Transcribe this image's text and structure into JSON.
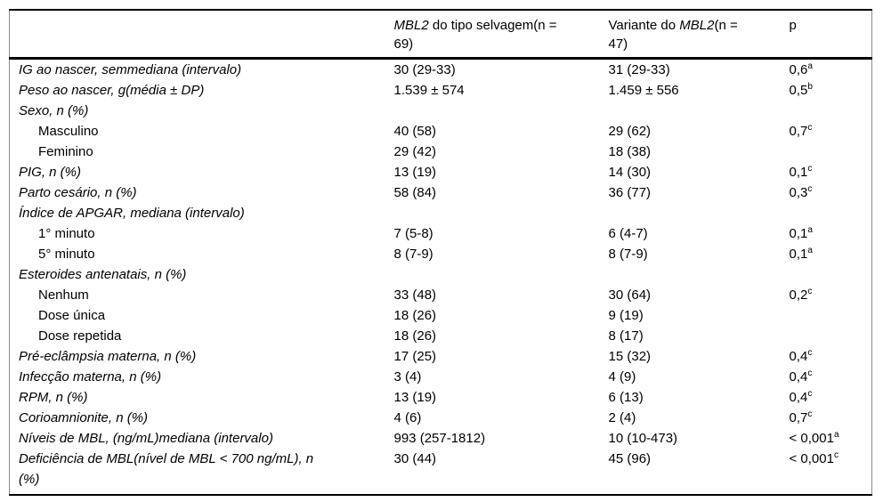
{
  "table": {
    "header": {
      "label": "",
      "col2": {
        "italic": "MBL2",
        "rest": " do tipo selvagem(n = 69)"
      },
      "col3": {
        "pre": "Variante do ",
        "italic": "MBL2",
        "rest": "(n = 47)"
      },
      "p": "p"
    },
    "rows": [
      {
        "label": "IG ao nascer, semmediana (intervalo)",
        "italic": true,
        "indent": false,
        "wild": "30 (29-33)",
        "variant": "31 (29-33)",
        "p": "0,6",
        "p_sup": "a"
      },
      {
        "label": "Peso ao nascer, g(média ± DP)",
        "italic": true,
        "indent": false,
        "wild": "1.539 ± 574",
        "variant": "1.459 ± 556",
        "p": "0,5",
        "p_sup": "b"
      },
      {
        "label": "Sexo, n (%)",
        "italic": true,
        "indent": false,
        "wild": "",
        "variant": "",
        "p": "",
        "p_sup": ""
      },
      {
        "label": "Masculino",
        "italic": false,
        "indent": true,
        "wild": "40 (58)",
        "variant": "29 (62)",
        "p": "0,7",
        "p_sup": "c"
      },
      {
        "label": "Feminino",
        "italic": false,
        "indent": true,
        "wild": "29 (42)",
        "variant": "18 (38)",
        "p": "",
        "p_sup": ""
      },
      {
        "label": "PIG, n (%)",
        "italic": true,
        "indent": false,
        "wild": "13 (19)",
        "variant": "14 (30)",
        "p": "0,1",
        "p_sup": "c"
      },
      {
        "label": "Parto cesário, n (%)",
        "italic": true,
        "indent": false,
        "wild": "58 (84)",
        "variant": "36 (77)",
        "p": "0,3",
        "p_sup": "c"
      },
      {
        "label": "Índice de APGAR, mediana (intervalo)",
        "italic": true,
        "indent": false,
        "wild": "",
        "variant": "",
        "p": "",
        "p_sup": ""
      },
      {
        "label": "1° minuto",
        "italic": false,
        "indent": true,
        "wild": "7 (5-8)",
        "variant": "6 (4-7)",
        "p": "0,1",
        "p_sup": "a"
      },
      {
        "label": "5° minuto",
        "italic": false,
        "indent": true,
        "wild": "8 (7-9)",
        "variant": "8 (7-9)",
        "p": "0,1",
        "p_sup": "a"
      },
      {
        "label": "Esteroides antenatais, n (%)",
        "italic": true,
        "indent": false,
        "wild": "",
        "variant": "",
        "p": "",
        "p_sup": ""
      },
      {
        "label": "Nenhum",
        "italic": false,
        "indent": true,
        "wild": "33 (48)",
        "variant": "30 (64)",
        "p": "0,2",
        "p_sup": "c"
      },
      {
        "label": "Dose única",
        "italic": false,
        "indent": true,
        "wild": "18 (26)",
        "variant": "9 (19)",
        "p": "",
        "p_sup": ""
      },
      {
        "label": "Dose repetida",
        "italic": false,
        "indent": true,
        "wild": "18 (26)",
        "variant": "8 (17)",
        "p": "",
        "p_sup": ""
      },
      {
        "label": "Pré-eclâmpsia materna, n (%)",
        "italic": true,
        "indent": false,
        "wild": "17 (25)",
        "variant": "15 (32)",
        "p": "0,4",
        "p_sup": "c"
      },
      {
        "label": "Infecção materna, n (%)",
        "italic": true,
        "indent": false,
        "wild": "3 (4)",
        "variant": "4 (9)",
        "p": "0,4",
        "p_sup": "c"
      },
      {
        "label": "RPM, n (%)",
        "italic": true,
        "indent": false,
        "wild": "13 (19)",
        "variant": "6 (13)",
        "p": "0,4",
        "p_sup": "c"
      },
      {
        "label": "Corioamnionite, n (%)",
        "italic": true,
        "indent": false,
        "wild": "4 (6)",
        "variant": "2 (4)",
        "p": "0,7",
        "p_sup": "c"
      },
      {
        "label": "Níveis de MBL, (ng/mL)mediana (intervalo)",
        "italic": true,
        "indent": false,
        "wild": "993 (257-1812)",
        "variant": "10 (10-473)",
        "p": "< 0,001",
        "p_sup": "a"
      },
      {
        "label": "Deficiência de MBL(nível de MBL < 700 ng/mL), n (%)",
        "italic": true,
        "indent": false,
        "wild": "30 (44)",
        "variant": "45 (96)",
        "p": "< 0,001",
        "p_sup": "c"
      }
    ]
  }
}
